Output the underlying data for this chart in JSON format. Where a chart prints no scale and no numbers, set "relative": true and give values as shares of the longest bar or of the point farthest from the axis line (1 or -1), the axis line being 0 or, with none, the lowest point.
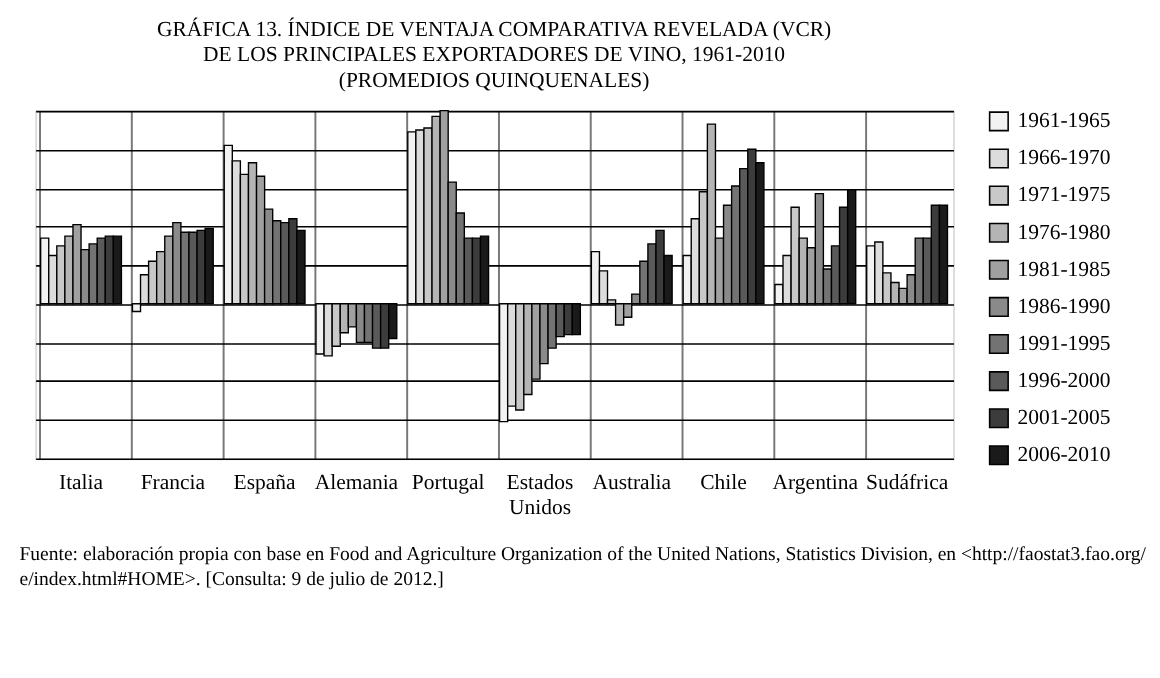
{
  "chart_data": {
    "type": "bar",
    "relative": true,
    "title": "GRÁFICA 13. ÍNDICE DE VENTAJA COMPARATIVA REVELADA (VCR)\nDE LOS PRINCIPALES EXPORTADORES DE VINO, 1961-2010\n(PROMEDIOS QUINQUENALES)",
    "categories": [
      "Italia",
      "Francia",
      "España",
      "Alemania",
      "Portugal",
      "Estados Unidos",
      "Australia",
      "Chile",
      "Argentina",
      "Sudáfrica"
    ],
    "series": [
      {
        "name": "1961-1965",
        "color": "#f2f2f2",
        "values": [
          0.34,
          -0.04,
          0.82,
          -0.26,
          0.89,
          -0.61,
          0.27,
          0.25,
          0.1,
          0.3
        ]
      },
      {
        "name": "1966-1970",
        "color": "#dcdcdc",
        "values": [
          0.25,
          0.15,
          0.74,
          -0.27,
          0.9,
          -0.53,
          0.17,
          0.44,
          0.25,
          0.32
        ]
      },
      {
        "name": "1971-1975",
        "color": "#c8c8c8",
        "values": [
          0.3,
          0.22,
          0.67,
          -0.22,
          0.91,
          -0.55,
          0.02,
          0.58,
          0.5,
          0.16
        ]
      },
      {
        "name": "1976-1980",
        "color": "#b4b4b4",
        "values": [
          0.35,
          0.27,
          0.73,
          -0.15,
          0.97,
          -0.47,
          -0.11,
          0.93,
          0.34,
          0.11
        ]
      },
      {
        "name": "1981-1985",
        "color": "#a0a0a0",
        "values": [
          0.41,
          0.35,
          0.66,
          -0.12,
          1,
          -0.39,
          -0.07,
          0.34,
          0.29,
          0.08
        ]
      },
      {
        "name": "1986-1990",
        "color": "#8a8a8a",
        "values": [
          0.28,
          0.42,
          0.49,
          -0.2,
          0.63,
          -0.31,
          0.05,
          0.51,
          0.57,
          0.15
        ]
      },
      {
        "name": "1991-1995",
        "color": "#737373",
        "values": [
          0.31,
          0.37,
          0.43,
          -0.2,
          0.47,
          -0.23,
          0.22,
          0.61,
          0.18,
          0.34
        ]
      },
      {
        "name": "1996-2000",
        "color": "#5a5a5a",
        "values": [
          0.34,
          0.37,
          0.42,
          -0.23,
          0.34,
          -0.17,
          0.31,
          0.7,
          0.3,
          0.34
        ]
      },
      {
        "name": "2001-2005",
        "color": "#3c3c3c",
        "values": [
          0.35,
          0.38,
          0.44,
          -0.23,
          0.34,
          -0.16,
          0.38,
          0.8,
          0.5,
          0.51
        ]
      },
      {
        "name": "2006-2010",
        "color": "#1a1a1a",
        "values": [
          0.35,
          0.39,
          0.38,
          -0.18,
          0.35,
          -0.16,
          0.25,
          0.73,
          0.59,
          0.51
        ]
      }
    ],
    "grid": true,
    "legend": "right",
    "annotations": [
      "Fuente: elaboración propia con base en Food and Agriculture Organization of the United Nations, Statistics Division, en <http://faostat3.fao.org/",
      "e/index.html#HOME>. [Consulta: 9 de julio de 2012.]"
    ]
  }
}
